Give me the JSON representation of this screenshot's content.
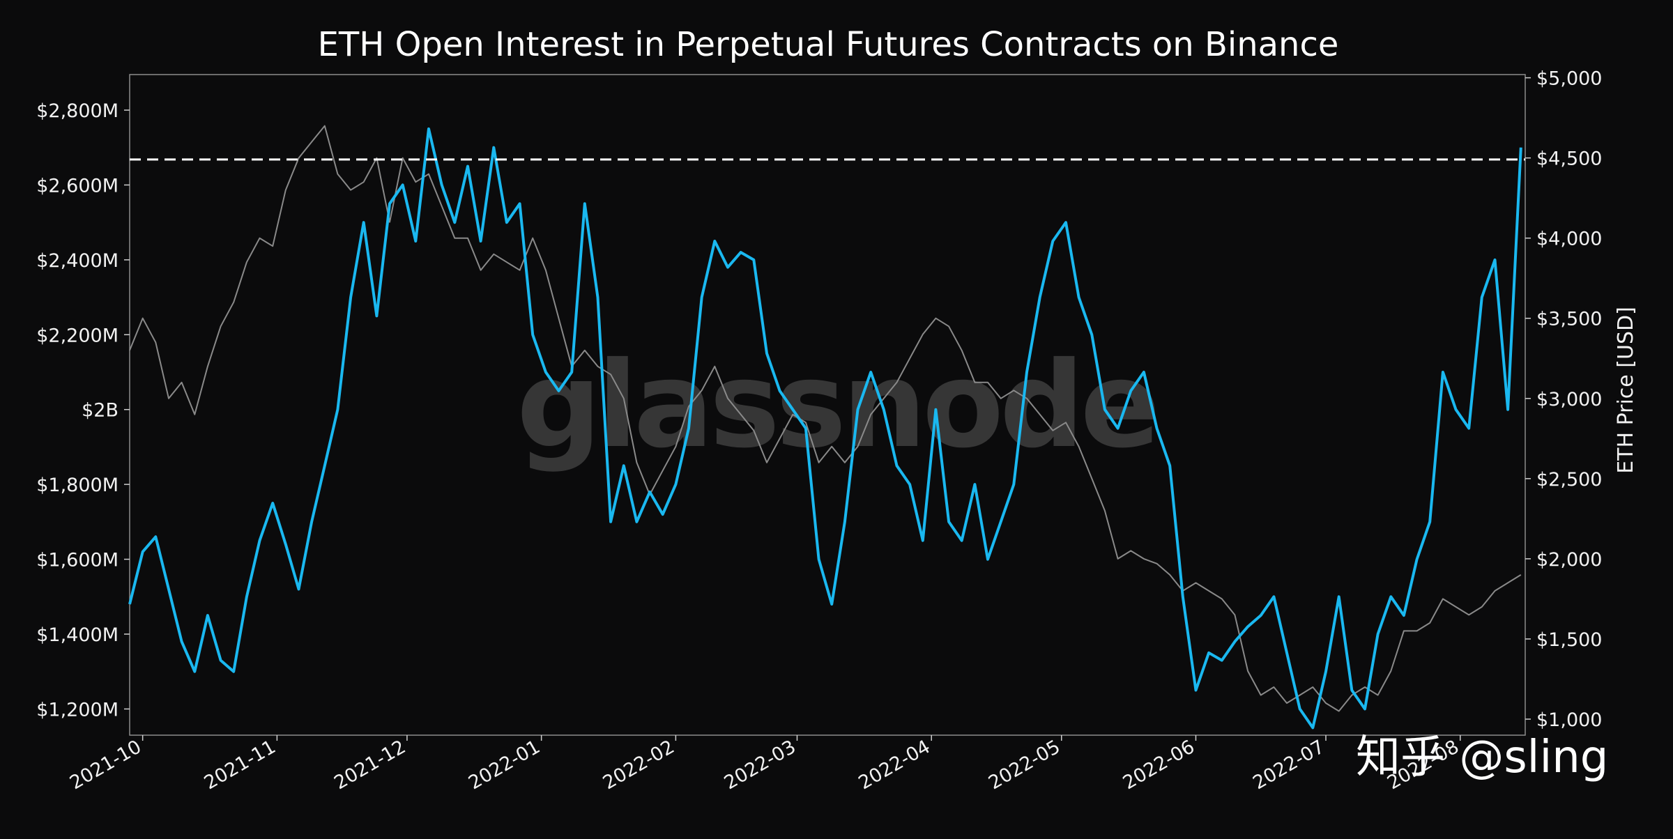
{
  "chart_data": {
    "type": "line",
    "title": "ETH Open Interest in Perpetual Futures Contracts on Binance",
    "x_tick_labels": [
      "2021-10",
      "2021-11",
      "2021-12",
      "2022-01",
      "2022-02",
      "2022-03",
      "2022-04",
      "2022-05",
      "2022-06",
      "2022-07",
      "2022-08"
    ],
    "left_axis": {
      "label": "",
      "ticks": [
        {
          "v": 1200,
          "label": "$1,200M"
        },
        {
          "v": 1400,
          "label": "$1,400M"
        },
        {
          "v": 1600,
          "label": "$1,600M"
        },
        {
          "v": 1800,
          "label": "$1,800M"
        },
        {
          "v": 2000,
          "label": "$2B"
        },
        {
          "v": 2200,
          "label": "$2,200M"
        },
        {
          "v": 2400,
          "label": "$2,400M"
        },
        {
          "v": 2600,
          "label": "$2,600M"
        },
        {
          "v": 2800,
          "label": "$2,800M"
        }
      ],
      "range": [
        1130,
        2895
      ]
    },
    "right_axis": {
      "label": "ETH Price [USD]",
      "ticks": [
        {
          "v": 1000,
          "label": "$1,000"
        },
        {
          "v": 1500,
          "label": "$1,500"
        },
        {
          "v": 2000,
          "label": "$2,000"
        },
        {
          "v": 2500,
          "label": "$2,500"
        },
        {
          "v": 3000,
          "label": "$3,000"
        },
        {
          "v": 3500,
          "label": "$3,500"
        },
        {
          "v": 4000,
          "label": "$4,000"
        },
        {
          "v": 4500,
          "label": "$4,500"
        },
        {
          "v": 5000,
          "label": "$5,000"
        }
      ],
      "range": [
        900,
        5020
      ]
    },
    "reference_line": {
      "axis": "left",
      "value": 2668,
      "style": "dashed",
      "color": "#ffffff"
    },
    "series": [
      {
        "axis": "left",
        "color": "#1ab8f0",
        "x": [
          "2021-09-28",
          "2021-10-01",
          "2021-10-04",
          "2021-10-07",
          "2021-10-10",
          "2021-10-13",
          "2021-10-16",
          "2021-10-19",
          "2021-10-22",
          "2021-10-25",
          "2021-10-28",
          "2021-10-31",
          "2021-11-03",
          "2021-11-06",
          "2021-11-09",
          "2021-11-12",
          "2021-11-15",
          "2021-11-18",
          "2021-11-21",
          "2021-11-24",
          "2021-11-27",
          "2021-11-30",
          "2021-12-03",
          "2021-12-06",
          "2021-12-09",
          "2021-12-12",
          "2021-12-15",
          "2021-12-18",
          "2021-12-21",
          "2021-12-24",
          "2021-12-27",
          "2021-12-30",
          "2022-01-02",
          "2022-01-05",
          "2022-01-08",
          "2022-01-11",
          "2022-01-14",
          "2022-01-17",
          "2022-01-20",
          "2022-01-23",
          "2022-01-26",
          "2022-01-29",
          "2022-02-01",
          "2022-02-04",
          "2022-02-07",
          "2022-02-10",
          "2022-02-13",
          "2022-02-16",
          "2022-02-19",
          "2022-02-22",
          "2022-02-25",
          "2022-02-28",
          "2022-03-03",
          "2022-03-06",
          "2022-03-09",
          "2022-03-12",
          "2022-03-15",
          "2022-03-18",
          "2022-03-21",
          "2022-03-24",
          "2022-03-27",
          "2022-03-30",
          "2022-04-02",
          "2022-04-05",
          "2022-04-08",
          "2022-04-11",
          "2022-04-14",
          "2022-04-17",
          "2022-04-20",
          "2022-04-23",
          "2022-04-26",
          "2022-04-29",
          "2022-05-02",
          "2022-05-05",
          "2022-05-08",
          "2022-05-11",
          "2022-05-14",
          "2022-05-17",
          "2022-05-20",
          "2022-05-23",
          "2022-05-26",
          "2022-05-29",
          "2022-06-01",
          "2022-06-04",
          "2022-06-07",
          "2022-06-10",
          "2022-06-13",
          "2022-06-16",
          "2022-06-19",
          "2022-06-22",
          "2022-06-25",
          "2022-06-28",
          "2022-07-01",
          "2022-07-04",
          "2022-07-07",
          "2022-07-10",
          "2022-07-13",
          "2022-07-16",
          "2022-07-19",
          "2022-07-22",
          "2022-07-25",
          "2022-07-28",
          "2022-07-31",
          "2022-08-03",
          "2022-08-06",
          "2022-08-09",
          "2022-08-12",
          "2022-08-15"
        ],
        "y": [
          1480,
          1620,
          1660,
          1520,
          1380,
          1300,
          1450,
          1330,
          1300,
          1500,
          1650,
          1750,
          1640,
          1520,
          1700,
          1850,
          2000,
          2300,
          2500,
          2250,
          2550,
          2600,
          2450,
          2750,
          2600,
          2500,
          2650,
          2450,
          2700,
          2500,
          2550,
          2200,
          2100,
          2050,
          2100,
          2550,
          2300,
          1700,
          1850,
          1700,
          1780,
          1720,
          1800,
          1950,
          2300,
          2450,
          2380,
          2420,
          2400,
          2150,
          2050,
          2000,
          1950,
          1600,
          1480,
          1700,
          2000,
          2100,
          2000,
          1850,
          1800,
          1650,
          2000,
          1700,
          1650,
          1800,
          1600,
          1700,
          1800,
          2100,
          2300,
          2450,
          2500,
          2300,
          2200,
          2000,
          1950,
          2050,
          2100,
          1950,
          1850,
          1500,
          1250,
          1350,
          1330,
          1380,
          1420,
          1450,
          1500,
          1350,
          1200,
          1150,
          1300,
          1500,
          1250,
          1200,
          1400,
          1500,
          1450,
          1600,
          1700,
          2100,
          2000,
          1950,
          2300,
          2400,
          2000,
          2700
        ]
      },
      {
        "axis": "right",
        "color": "#8a8a8a",
        "x": [
          "2021-09-28",
          "2021-10-01",
          "2021-10-04",
          "2021-10-07",
          "2021-10-10",
          "2021-10-13",
          "2021-10-16",
          "2021-10-19",
          "2021-10-22",
          "2021-10-25",
          "2021-10-28",
          "2021-10-31",
          "2021-11-03",
          "2021-11-06",
          "2021-11-09",
          "2021-11-12",
          "2021-11-15",
          "2021-11-18",
          "2021-11-21",
          "2021-11-24",
          "2021-11-27",
          "2021-11-30",
          "2021-12-03",
          "2021-12-06",
          "2021-12-09",
          "2021-12-12",
          "2021-12-15",
          "2021-12-18",
          "2021-12-21",
          "2021-12-24",
          "2021-12-27",
          "2021-12-30",
          "2022-01-02",
          "2022-01-05",
          "2022-01-08",
          "2022-01-11",
          "2022-01-14",
          "2022-01-17",
          "2022-01-20",
          "2022-01-23",
          "2022-01-26",
          "2022-01-29",
          "2022-02-01",
          "2022-02-04",
          "2022-02-07",
          "2022-02-10",
          "2022-02-13",
          "2022-02-16",
          "2022-02-19",
          "2022-02-22",
          "2022-02-25",
          "2022-02-28",
          "2022-03-03",
          "2022-03-06",
          "2022-03-09",
          "2022-03-12",
          "2022-03-15",
          "2022-03-18",
          "2022-03-21",
          "2022-03-24",
          "2022-03-27",
          "2022-03-30",
          "2022-04-02",
          "2022-04-05",
          "2022-04-08",
          "2022-04-11",
          "2022-04-14",
          "2022-04-17",
          "2022-04-20",
          "2022-04-23",
          "2022-04-26",
          "2022-04-29",
          "2022-05-02",
          "2022-05-05",
          "2022-05-08",
          "2022-05-11",
          "2022-05-14",
          "2022-05-17",
          "2022-05-20",
          "2022-05-23",
          "2022-05-26",
          "2022-05-29",
          "2022-06-01",
          "2022-06-04",
          "2022-06-07",
          "2022-06-10",
          "2022-06-13",
          "2022-06-16",
          "2022-06-19",
          "2022-06-22",
          "2022-06-25",
          "2022-06-28",
          "2022-07-01",
          "2022-07-04",
          "2022-07-07",
          "2022-07-10",
          "2022-07-13",
          "2022-07-16",
          "2022-07-19",
          "2022-07-22",
          "2022-07-25",
          "2022-07-28",
          "2022-07-31",
          "2022-08-03",
          "2022-08-06",
          "2022-08-09",
          "2022-08-12",
          "2022-08-15"
        ],
        "y": [
          3300,
          3500,
          3350,
          3000,
          3100,
          2900,
          3200,
          3450,
          3600,
          3850,
          4000,
          3950,
          4300,
          4500,
          4600,
          4700,
          4400,
          4300,
          4350,
          4500,
          4100,
          4500,
          4350,
          4400,
          4200,
          4000,
          4000,
          3800,
          3900,
          3850,
          3800,
          4000,
          3800,
          3500,
          3200,
          3300,
          3200,
          3150,
          3000,
          2600,
          2400,
          2550,
          2700,
          2950,
          3050,
          3200,
          3000,
          2900,
          2800,
          2600,
          2750,
          2900,
          2850,
          2600,
          2700,
          2600,
          2700,
          2900,
          3000,
          3100,
          3250,
          3400,
          3500,
          3450,
          3300,
          3100,
          3100,
          3000,
          3050,
          3000,
          2900,
          2800,
          2850,
          2700,
          2500,
          2300,
          2000,
          2050,
          2000,
          1970,
          1900,
          1800,
          1850,
          1800,
          1750,
          1650,
          1300,
          1150,
          1200,
          1100,
          1150,
          1200,
          1100,
          1050,
          1150,
          1200,
          1150,
          1300,
          1550,
          1550,
          1600,
          1750,
          1700,
          1650,
          1700,
          1800,
          1850,
          1900
        ]
      }
    ],
    "grid": false,
    "legend": "none"
  },
  "watermark": "glassnode",
  "credit": "知乎 @sling"
}
